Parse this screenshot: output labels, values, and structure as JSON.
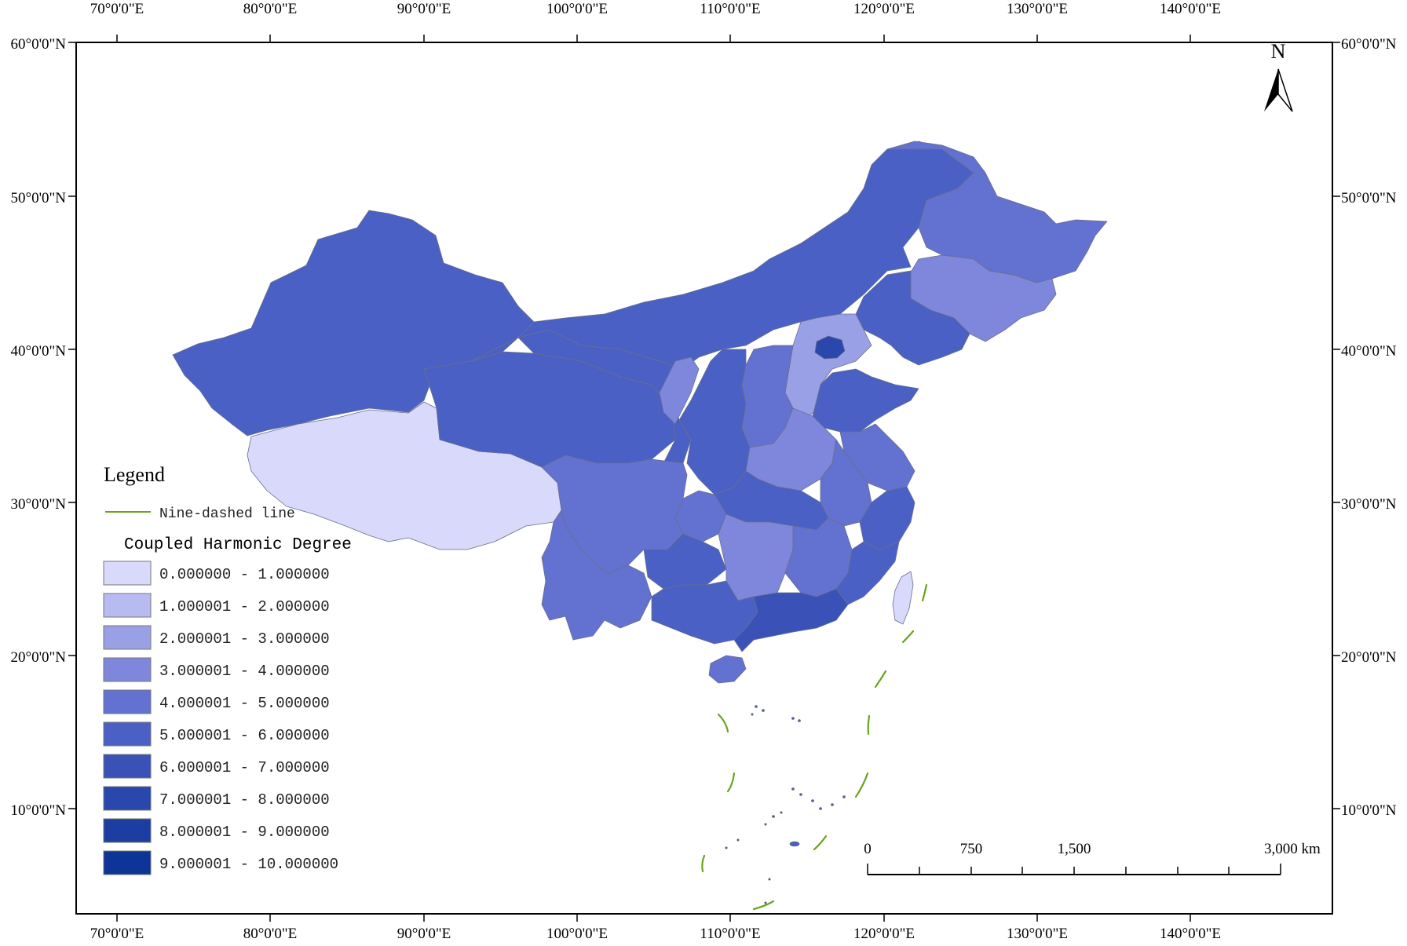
{
  "map": {
    "axes": {
      "lon_labels": [
        "70°0'0\"E",
        "80°0'0\"E",
        "90°0'0\"E",
        "100°0'0\"E",
        "110°0'0\"E",
        "120°0'0\"E",
        "130°0'0\"E",
        "140°0'0\"E"
      ],
      "lat_labels": [
        "60°0'0\"N",
        "50°0'0\"N",
        "40°0'0\"N",
        "30°0'0\"N",
        "20°0'0\"N",
        "10°0'0\"N"
      ]
    },
    "north_arrow": {
      "label": "N"
    },
    "legend": {
      "title": "Legend",
      "line_label": "Nine-dashed line",
      "line_color": "#6aa31e",
      "class_title": "Coupled Harmonic Degree",
      "classes": [
        {
          "label": "0.000000 - 1.000000",
          "color": "#d8d9fb"
        },
        {
          "label": "1.000001 - 2.000000",
          "color": "#b8bbf2"
        },
        {
          "label": "2.000001 - 3.000000",
          "color": "#9aa0e6"
        },
        {
          "label": "3.000001 - 4.000000",
          "color": "#7e87dc"
        },
        {
          "label": "4.000001 - 5.000000",
          "color": "#6371d1"
        },
        {
          "label": "5.000001 - 6.000000",
          "color": "#4a60c4"
        },
        {
          "label": "6.000001 - 7.000000",
          "color": "#3a52b8"
        },
        {
          "label": "7.000001 - 8.000000",
          "color": "#2a47ad"
        },
        {
          "label": "8.000001 - 9.000000",
          "color": "#1c3ea3"
        },
        {
          "label": "9.000001 - 10.000000",
          "color": "#0d3597"
        }
      ]
    },
    "scale_bar": {
      "labels": [
        "0",
        "750",
        "1,500",
        "3,000 km"
      ]
    }
  }
}
